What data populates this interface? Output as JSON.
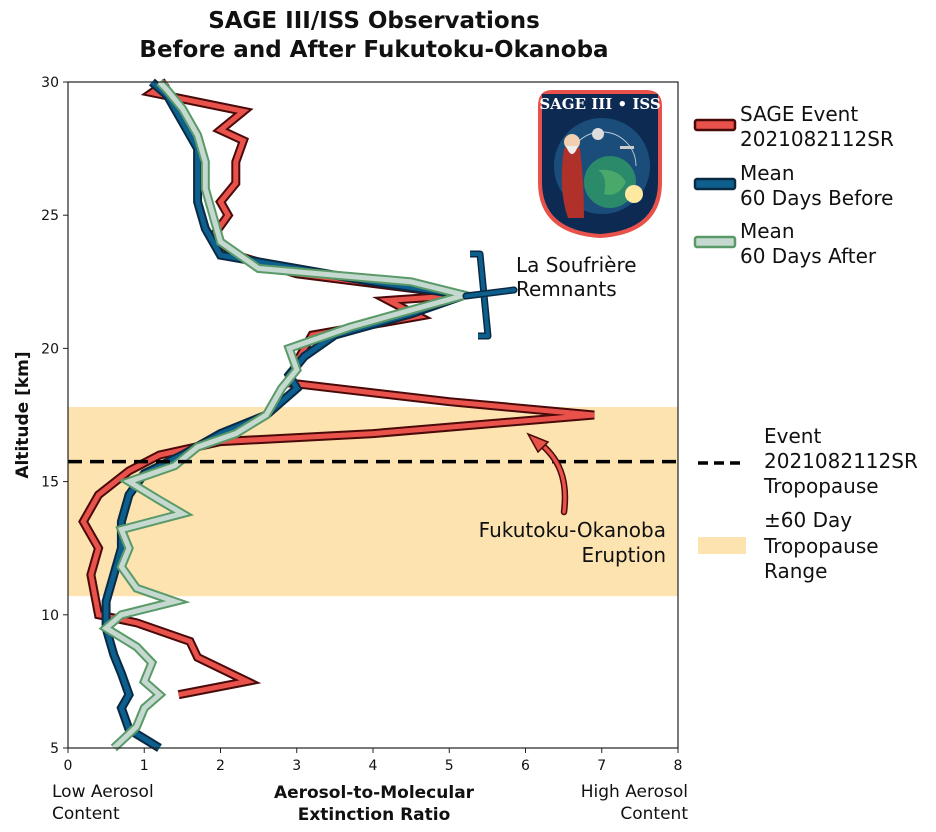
{
  "chart_data": {
    "type": "line",
    "title_line1": "SAGE III/ISS Observations",
    "title_line2": "Before and After Fukutoku-Okanoba",
    "xlabel_line1": "Aerosol-to-Molecular",
    "xlabel_line2": "Extinction Ratio",
    "ylabel": "Altitude [km]",
    "x_low_line1": "Low Aerosol",
    "x_low_line2": "Content",
    "x_high_line1": "High Aerosol",
    "x_high_line2": "Content",
    "xlim": [
      0,
      8
    ],
    "ylim": [
      5,
      30
    ],
    "xticks": [
      0,
      1,
      2,
      3,
      4,
      5,
      6,
      7,
      8
    ],
    "yticks": [
      5,
      10,
      15,
      20,
      25,
      30
    ],
    "legend_placement": "right",
    "series": [
      {
        "name_line1": "SAGE Event",
        "name_line2": "2021082112SR",
        "color": "#e8524a",
        "edge": "#4a0a0a",
        "points": [
          [
            1.45,
            7.0
          ],
          [
            2.35,
            7.5
          ],
          [
            1.7,
            8.4
          ],
          [
            1.6,
            9.0
          ],
          [
            0.9,
            9.7
          ],
          [
            0.4,
            10.0
          ],
          [
            0.3,
            11.5
          ],
          [
            0.4,
            12.5
          ],
          [
            0.2,
            13.5
          ],
          [
            0.4,
            14.5
          ],
          [
            0.8,
            15.4
          ],
          [
            1.2,
            16.0
          ],
          [
            2.0,
            16.5
          ],
          [
            4.0,
            16.8
          ],
          [
            6.9,
            17.5
          ],
          [
            5.0,
            18.0
          ],
          [
            2.9,
            18.7
          ],
          [
            3.0,
            19.5
          ],
          [
            3.2,
            20.5
          ],
          [
            4.6,
            21.2
          ],
          [
            4.2,
            21.8
          ],
          [
            5.2,
            22.0
          ],
          [
            3.0,
            22.8
          ],
          [
            2.2,
            23.5
          ],
          [
            1.9,
            24.2
          ],
          [
            2.1,
            25.0
          ],
          [
            2.0,
            25.5
          ],
          [
            2.2,
            26.2
          ],
          [
            2.2,
            27.0
          ],
          [
            2.3,
            27.8
          ],
          [
            2.0,
            28.2
          ],
          [
            2.3,
            28.9
          ],
          [
            1.1,
            29.6
          ],
          [
            1.3,
            30.0
          ]
        ]
      },
      {
        "name_line1": "Mean",
        "name_line2": "60 Days Before",
        "color": "#0d5f8e",
        "edge": "#0a2a44",
        "points": [
          [
            1.2,
            5.0
          ],
          [
            0.8,
            5.7
          ],
          [
            0.7,
            6.5
          ],
          [
            0.8,
            7.0
          ],
          [
            0.7,
            7.8
          ],
          [
            0.6,
            8.5
          ],
          [
            0.5,
            9.5
          ],
          [
            0.5,
            10.5
          ],
          [
            0.6,
            11.5
          ],
          [
            0.7,
            12.5
          ],
          [
            0.7,
            13.5
          ],
          [
            0.8,
            14.5
          ],
          [
            1.0,
            15.3
          ],
          [
            1.5,
            16.0
          ],
          [
            2.0,
            16.8
          ],
          [
            2.6,
            17.5
          ],
          [
            3.0,
            18.5
          ],
          [
            2.9,
            19.0
          ],
          [
            3.1,
            19.7
          ],
          [
            3.5,
            20.5
          ],
          [
            4.5,
            21.3
          ],
          [
            5.2,
            22.0
          ],
          [
            4.0,
            22.5
          ],
          [
            2.0,
            23.5
          ],
          [
            1.8,
            24.5
          ],
          [
            1.7,
            25.5
          ],
          [
            1.7,
            26.5
          ],
          [
            1.7,
            27.5
          ],
          [
            1.5,
            28.5
          ],
          [
            1.3,
            29.5
          ],
          [
            1.1,
            30.0
          ]
        ]
      },
      {
        "name_line1": "Mean",
        "name_line2": "60 Days After",
        "color": "#c5d9d0",
        "edge": "#5a9a68",
        "points": [
          [
            0.6,
            5.0
          ],
          [
            0.9,
            5.8
          ],
          [
            1.0,
            6.5
          ],
          [
            1.2,
            7.0
          ],
          [
            1.0,
            7.5
          ],
          [
            1.1,
            8.2
          ],
          [
            0.9,
            8.8
          ],
          [
            0.5,
            9.5
          ],
          [
            0.7,
            10.0
          ],
          [
            1.4,
            10.5
          ],
          [
            0.9,
            11.0
          ],
          [
            0.7,
            11.8
          ],
          [
            0.8,
            12.5
          ],
          [
            0.7,
            13.2
          ],
          [
            1.5,
            13.8
          ],
          [
            1.2,
            14.3
          ],
          [
            0.8,
            15.0
          ],
          [
            1.4,
            15.6
          ],
          [
            1.7,
            16.3
          ],
          [
            2.2,
            16.8
          ],
          [
            2.6,
            17.5
          ],
          [
            2.8,
            18.5
          ],
          [
            3.0,
            19.2
          ],
          [
            2.9,
            20.0
          ],
          [
            3.7,
            20.8
          ],
          [
            5.2,
            22.0
          ],
          [
            4.5,
            22.5
          ],
          [
            2.5,
            23.0
          ],
          [
            2.0,
            24.0
          ],
          [
            1.9,
            25.0
          ],
          [
            1.8,
            26.0
          ],
          [
            1.8,
            27.0
          ],
          [
            1.7,
            28.0
          ],
          [
            1.5,
            29.0
          ],
          [
            1.3,
            29.7
          ],
          [
            1.2,
            30.0
          ]
        ]
      }
    ],
    "tropopause": {
      "altitude": 15.75,
      "range": [
        10.7,
        17.8
      ],
      "line_label_line1": "Event",
      "line_label_line2": "2021082112SR",
      "line_label_line3": "Tropopause",
      "range_label_line1": "±60 Day",
      "range_label_line2": "Tropopause",
      "range_label_line3": "Range",
      "range_color": "#fde3b0"
    },
    "annotations": {
      "soufriere_line1": "La Soufrière",
      "soufriere_line2": "Remnants",
      "fukutoku_line1": "Fukutoku-Okanoba",
      "fukutoku_line2": "Eruption"
    },
    "logo": {
      "text": "SAGE III • ISS",
      "icon": "sage-iii-iss-mission-patch"
    }
  }
}
